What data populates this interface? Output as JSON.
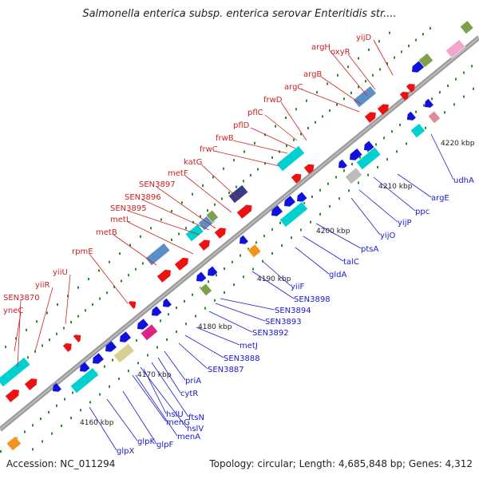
{
  "title": "Salmonella enterica subsp. enterica serovar Enteritidis str....",
  "footer": {
    "accession": "Accession: NC_011294",
    "summary": "Topology: circular; Length: 4,685,848 bp; Genes: 4,312"
  },
  "colors": {
    "forward_label": "#cc2222",
    "reverse_label": "#1a1acc",
    "backbone": "#888888",
    "forward_gene": "#ee1111",
    "reverse_gene": "#1111dd",
    "rrna": "#00d0d0",
    "operon": "#5c8fc7",
    "gc_dots": "#2a8a2a"
  },
  "ticks": [
    "4160 kbp",
    "4170 kbp",
    "4180 kbp",
    "4190 kbp",
    "4200 kbp",
    "4210 kbp",
    "4220 kbp"
  ],
  "upper_labels": [
    "yneC",
    "SEN3870",
    "yiiR",
    "yiiU",
    "rpmE",
    "metB",
    "metL",
    "SEN3895",
    "SEN3896",
    "SEN3897",
    "metF",
    "katG",
    "frwC",
    "frwB",
    "pflD",
    "pflC",
    "frwD",
    "argC",
    "argB",
    "argH",
    "oxyR",
    "yijD"
  ],
  "lower_labels": [
    "glpX",
    "glpK",
    "glpF",
    "menA",
    "hslV",
    "menG",
    "ftsN",
    "hslU",
    "cytR",
    "priA",
    "SEN3887",
    "SEN3888",
    "metJ",
    "SEN3892",
    "SEN3893",
    "SEN3894",
    "SEN3898",
    "yiiF",
    "gldA",
    "talC",
    "ptsA",
    "yijO",
    "yijP",
    "ppc",
    "argE",
    "udhA"
  ]
}
